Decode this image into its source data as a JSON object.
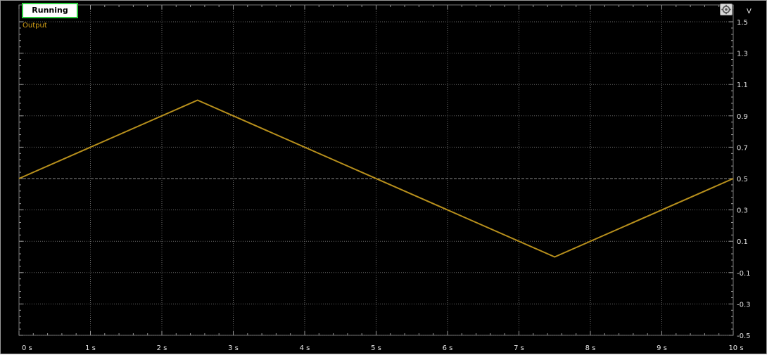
{
  "status": {
    "label": "Running",
    "color": "#2ecc40"
  },
  "settings_icon": "gear-icon",
  "chart_data": {
    "type": "line",
    "legend": {
      "position": "top-left"
    },
    "ylabel_unit": "V",
    "xlim": [
      0,
      10
    ],
    "ylim": [
      -0.5,
      1.5
    ],
    "grid": true,
    "x_ticks": [
      0,
      1,
      2,
      3,
      4,
      5,
      6,
      7,
      8,
      9,
      10
    ],
    "x_tick_labels": [
      "0 s",
      "1 s",
      "2 s",
      "3 s",
      "4 s",
      "5 s",
      "6 s",
      "7 s",
      "8 s",
      "9 s",
      "10 s"
    ],
    "y_ticks": [
      1.5,
      1.3,
      1.1,
      0.9,
      0.7,
      0.5,
      0.3,
      0.1,
      -0.1,
      -0.3,
      -0.5
    ],
    "y_tick_labels": [
      "1.5",
      "1.3",
      "1.1",
      "0.9",
      "0.7",
      "0.5",
      "0.3",
      "0.1",
      "-0.1",
      "-0.3",
      "-0.5"
    ],
    "series": [
      {
        "name": "Output",
        "color": "#b8901c",
        "x": [
          0,
          2.5,
          7.5,
          10
        ],
        "y": [
          0.5,
          1.0,
          0.0,
          0.5
        ]
      }
    ]
  }
}
